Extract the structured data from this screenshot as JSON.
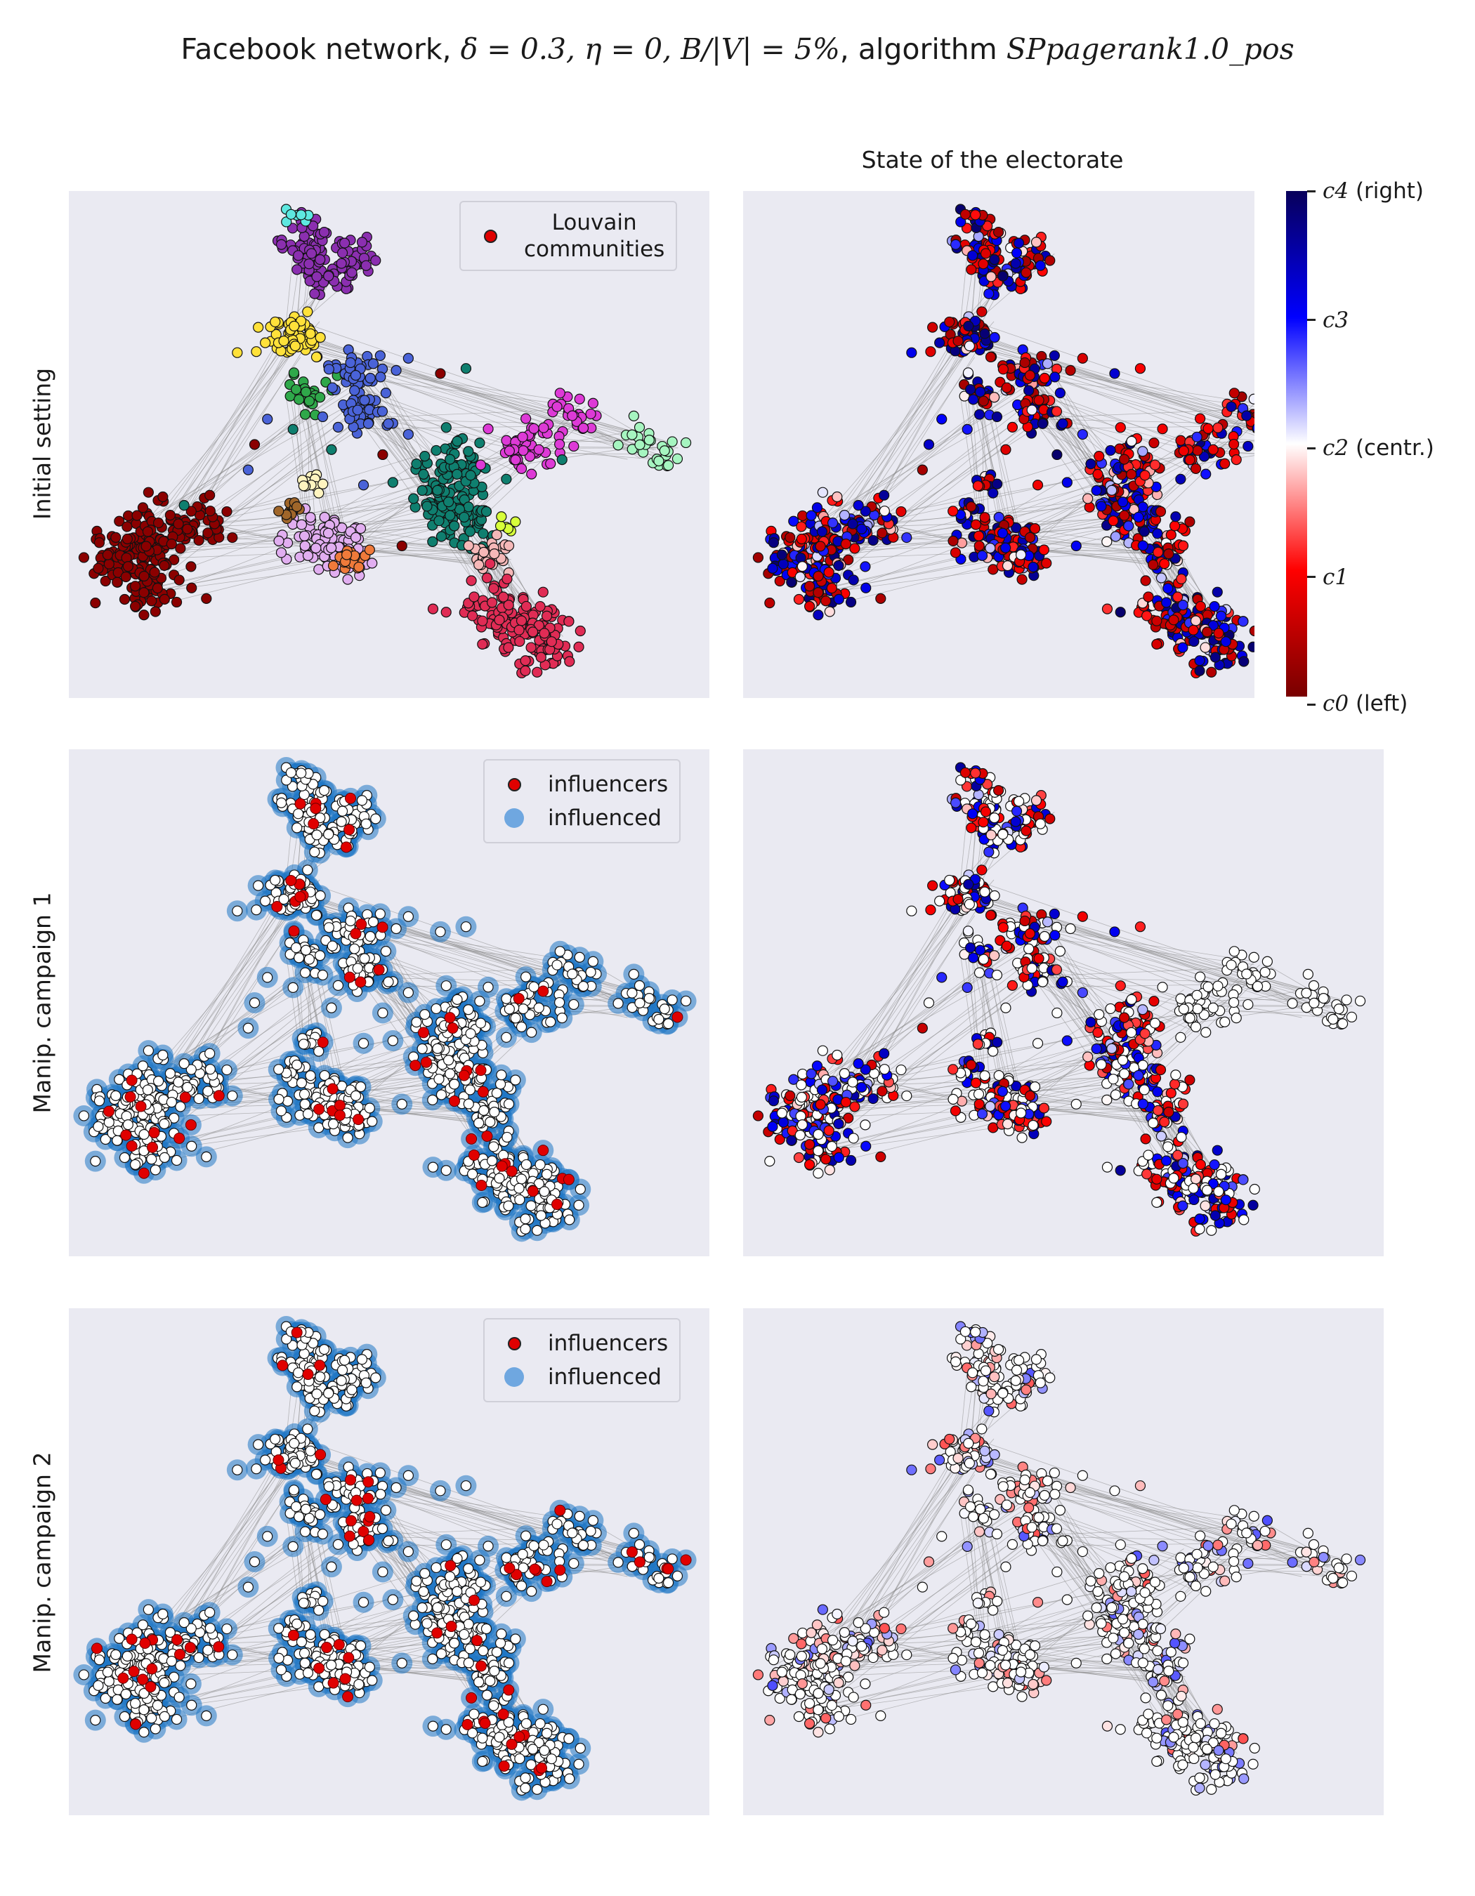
{
  "figure": {
    "title_prefix": "Facebook network, ",
    "title_math": "δ = 0.3, η = 0, B/|V| = 5%",
    "title_mid": ", algorithm ",
    "title_algo": "SPpagerank1.0_pos",
    "column_title": "State of the electorate",
    "row_labels": [
      "Initial setting",
      "Manip. campaign 1",
      "Manip. campaign 2"
    ]
  },
  "legends": {
    "communities": {
      "label_line1": "Louvain",
      "label_line2": "communities"
    },
    "campaign1": {
      "influencers": "influencers",
      "influenced": "influenced"
    },
    "campaign2": {
      "influencers": "influencers",
      "influenced": "influenced"
    }
  },
  "colorbar": {
    "label_c4": "c4",
    "label_c4_note": " (right)",
    "label_c3": "c3",
    "label_c2": "c2",
    "label_c2_note": " (centr.)",
    "label_c1": "c1",
    "label_c0": "c0",
    "label_c0_note": " (left)"
  },
  "colors": {
    "background": "#eaeaf2",
    "influencer": "#e00000",
    "influenced_halo": "#1f77c4",
    "node_neutral": "#ffffff",
    "opinion_scale": [
      "#780000",
      "#ff0000",
      "#ffffff",
      "#0000ff",
      "#08005a"
    ]
  },
  "chart_data": {
    "type": "scatter",
    "description_note": "network visualization; node positions identical across panels",
    "clusters": [
      {
        "id": "top-purple",
        "color": "#8b2fb0",
        "node_count": 110
      },
      {
        "id": "top-cyan",
        "color": "#5ee8e0",
        "node_count": 8
      },
      {
        "id": "upper-yellow",
        "color": "#ffe13a",
        "node_count": 60
      },
      {
        "id": "upper-green",
        "color": "#2fa84a",
        "node_count": 25
      },
      {
        "id": "upper-blue",
        "color": "#4a63d8",
        "node_count": 80
      },
      {
        "id": "teal",
        "color": "#0f7f6f",
        "node_count": 150
      },
      {
        "id": "magenta",
        "color": "#dd3ad6",
        "node_count": 70
      },
      {
        "id": "mint",
        "color": "#a6f5c0",
        "node_count": 30
      },
      {
        "id": "dark-red",
        "color": "#8b0000",
        "node_count": 220
      },
      {
        "id": "lavender",
        "color": "#e1aef0",
        "node_count": 90
      },
      {
        "id": "cream",
        "color": "#fff4c0",
        "node_count": 15
      },
      {
        "id": "brown",
        "color": "#a0662a",
        "node_count": 12
      },
      {
        "id": "orange",
        "color": "#f07a3a",
        "node_count": 20
      },
      {
        "id": "pink",
        "color": "#f5b8b8",
        "node_count": 35
      },
      {
        "id": "lime",
        "color": "#d7ff3a",
        "node_count": 6
      },
      {
        "id": "crimson",
        "color": "#e02c55",
        "node_count": 160
      }
    ]
  }
}
